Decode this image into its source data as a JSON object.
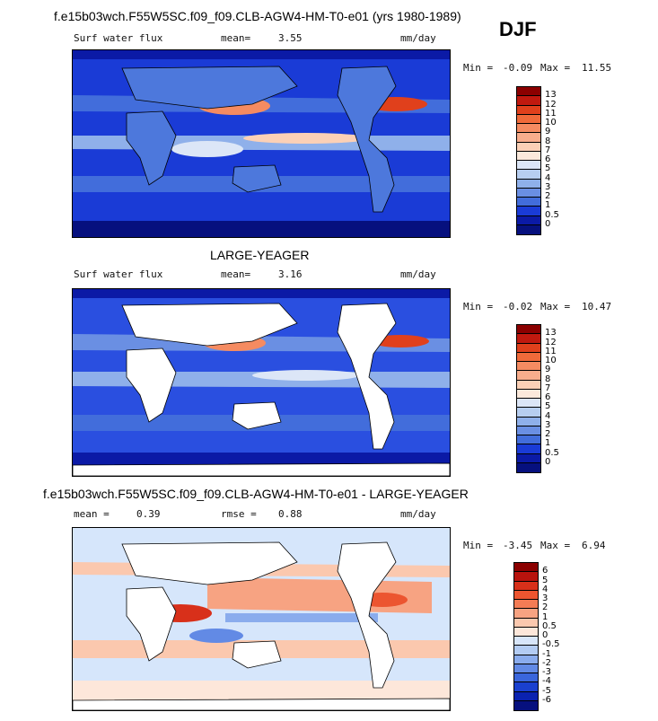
{
  "header": {
    "title": "f.e15b03wch.F55W5SC.f09_f09.CLB-AGW4-HM-T0-e01 (yrs 1980-1989)",
    "season": "DJF"
  },
  "panels": [
    {
      "id": "top",
      "variable": "Surf water flux",
      "stat_label": "mean=",
      "stat_value": "3.55",
      "units": "mm/day",
      "min_label": "Min =",
      "min_value": "-0.09",
      "max_label": "Max =",
      "max_value": "11.55",
      "ocean_color": "#1a3bd6",
      "colorbar_labels": [
        "13",
        "12",
        "11",
        "10",
        "9",
        "8",
        "7",
        "6",
        "5",
        "4",
        "3",
        "2",
        "1",
        "0.5",
        "0"
      ],
      "colorbar_colors": [
        "#8b0000",
        "#c0190f",
        "#e0401c",
        "#f06a3a",
        "#f58b61",
        "#f8ad8c",
        "#fbd0b6",
        "#fbe9db",
        "#dce6f7",
        "#b7cef0",
        "#8fb0ea",
        "#6a8fe3",
        "#426ddb",
        "#1a3bd6",
        "#0b1aa6",
        "#06107e"
      ]
    },
    {
      "id": "middle",
      "caption": "LARGE-YEAGER",
      "variable": "Surf water flux",
      "stat_label": "mean=",
      "stat_value": "3.16",
      "units": "mm/day",
      "min_label": "Min =",
      "min_value": "-0.02",
      "max_label": "Max =",
      "max_value": "10.47",
      "ocean_color": "#2a4fe0",
      "colorbar_labels": [
        "13",
        "12",
        "11",
        "10",
        "9",
        "8",
        "7",
        "6",
        "5",
        "4",
        "3",
        "2",
        "1",
        "0.5",
        "0"
      ],
      "colorbar_colors": [
        "#8b0000",
        "#c0190f",
        "#e0401c",
        "#f06a3a",
        "#f58b61",
        "#f8ad8c",
        "#fbd0b6",
        "#fbe9db",
        "#dce6f7",
        "#b7cef0",
        "#8fb0ea",
        "#6a8fe3",
        "#426ddb",
        "#1a3bd6",
        "#0b1aa6",
        "#06107e"
      ]
    },
    {
      "id": "bottom",
      "caption": "f.e15b03wch.F55W5SC.f09_f09.CLB-AGW4-HM-T0-e01 - LARGE-YEAGER",
      "stat_label": "mean =",
      "stat_value": "0.39",
      "stat2_label": "rmse =",
      "stat2_value": "0.88",
      "units": "mm/day",
      "min_label": "Min =",
      "min_value": "-3.45",
      "max_label": "Max =",
      "max_value": "6.94",
      "ocean_color": "#d6e6fb",
      "colorbar_labels": [
        "6",
        "5",
        "4",
        "3",
        "2",
        "1",
        "0.5",
        "0",
        "-0.5",
        "-1",
        "-2",
        "-3",
        "-4",
        "-5",
        "-6"
      ],
      "colorbar_colors": [
        "#8b0000",
        "#b8130d",
        "#d8301a",
        "#ec5530",
        "#f37c55",
        "#f7a382",
        "#fbc8ae",
        "#fde7da",
        "#d8e6fa",
        "#b3ccf3",
        "#8aaced",
        "#628ae5",
        "#3a66dc",
        "#1a40cf",
        "#0a22b0",
        "#06107e"
      ]
    }
  ]
}
